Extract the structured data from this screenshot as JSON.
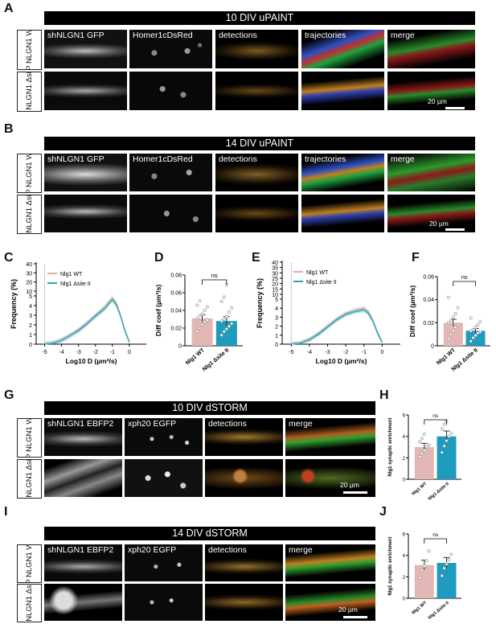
{
  "panels": {
    "A": {
      "letter": "A",
      "header": "10 DIV uPAINT",
      "rows": [
        "AP NLGN1 WT",
        "AP NLGN1 ΔsiteII"
      ],
      "cols": [
        "shNLGN1 GFP",
        "Homer1cDsRed",
        "detections",
        "trajectories",
        "merge"
      ],
      "scalebar": "20 µm"
    },
    "B": {
      "letter": "B",
      "header": "14 DIV uPAINT",
      "rows": [
        "AP NLGN1 WT",
        "AP NLGN1 ΔsiteII"
      ],
      "cols": [
        "shNLGN1 GFP",
        "Homer1cDsRed",
        "detections",
        "trajectories",
        "merge"
      ],
      "scalebar": "20 µm"
    },
    "G": {
      "letter": "G",
      "header": "10 DIV dSTORM",
      "rows": [
        "AP NLGN1 WT",
        "AP NLGN1 ΔsiteII"
      ],
      "cols": [
        "shNLGN1 EBFP2",
        "xph20 EGFP",
        "detections",
        "merge"
      ],
      "scalebar": "20 µm"
    },
    "I": {
      "letter": "I",
      "header": "14 DIV dSTORM",
      "rows": [
        "AP NLGN1 WT",
        "AP NLGN1 ΔsiteII"
      ],
      "cols": [
        "shNLGN1 EBFP2",
        "xph20 EGFP",
        "detections",
        "merge"
      ],
      "scalebar": "20 µm"
    }
  },
  "letters": {
    "C": "C",
    "D": "D",
    "E": "E",
    "F": "F",
    "H": "H",
    "J": "J"
  },
  "colors": {
    "wt": "#e3b7b3",
    "mut": "#1f9bbd",
    "wt_line": "#e9aaa8",
    "mut_line": "#2aa7b8"
  },
  "chart_data": [
    {
      "id": "C",
      "type": "line",
      "xlabel": "Log10 D (µm²/s)",
      "ylabel": "Frequency (%)",
      "xlim": [
        -5.5,
        1
      ],
      "xticks": [
        -5,
        -4,
        -3,
        -2,
        -1,
        0
      ],
      "yticks_lower": [
        0,
        1,
        2,
        3,
        4,
        5
      ],
      "yticks_upper": [
        10,
        20,
        30,
        40
      ],
      "series": [
        {
          "name": "Nlg1 WT",
          "x": [
            -5,
            -4.5,
            -4,
            -3.5,
            -3,
            -2.5,
            -2,
            -1.5,
            -1.25,
            -1,
            -0.75,
            -0.5,
            -0.25,
            0
          ],
          "y": [
            0,
            0.1,
            0.4,
            0.9,
            1.5,
            2.2,
            3.0,
            3.8,
            4.3,
            4.8,
            4.2,
            2.9,
            1.4,
            0.2
          ]
        },
        {
          "name": "Nlg1 Δsite II",
          "x": [
            -5,
            -4.5,
            -4,
            -3.5,
            -3,
            -2.5,
            -2,
            -1.5,
            -1.25,
            -1,
            -0.75,
            -0.5,
            -0.25,
            0
          ],
          "y": [
            0,
            0.1,
            0.4,
            0.9,
            1.4,
            2.1,
            2.9,
            3.6,
            4.1,
            4.6,
            4.0,
            2.8,
            1.3,
            0.2
          ]
        }
      ],
      "spike": {
        "x": -5,
        "y": 40
      }
    },
    {
      "id": "D",
      "type": "bar",
      "ylabel": "Diff coef (µm²/s)",
      "ylim": [
        0,
        0.08
      ],
      "yticks": [
        0,
        0.02,
        0.04,
        0.06,
        0.08
      ],
      "categories": [
        "Nlg1 WT",
        "Nlg1 Δsite II"
      ],
      "values": [
        0.031,
        0.028
      ],
      "errors": [
        0.004,
        0.005
      ],
      "points": [
        [
          0.016,
          0.02,
          0.024,
          0.027,
          0.029,
          0.031,
          0.034,
          0.036,
          0.04,
          0.044,
          0.046,
          0.051
        ],
        [
          0.012,
          0.016,
          0.019,
          0.022,
          0.025,
          0.028,
          0.03,
          0.033,
          0.038,
          0.043,
          0.05,
          0.055,
          0.069
        ]
      ],
      "significance": "ns"
    },
    {
      "id": "E",
      "type": "line",
      "xlabel": "Log10 D (µm²/s)",
      "ylabel": "Frequency (%)",
      "xlim": [
        -5.5,
        1
      ],
      "xticks": [
        -5,
        -4,
        -3,
        -2,
        -1,
        0
      ],
      "yticks_lower": [
        0,
        1,
        2,
        3,
        4,
        5
      ],
      "yticks_upper": [
        10,
        15,
        20,
        25,
        30,
        35,
        40
      ],
      "series": [
        {
          "name": "Nlg1 WT",
          "x": [
            -5,
            -4.5,
            -4,
            -3.5,
            -3,
            -2.5,
            -2,
            -1.5,
            -1.25,
            -1,
            -0.75,
            -0.5,
            -0.25,
            0
          ],
          "y": [
            0,
            0.1,
            0.5,
            1.2,
            2.0,
            2.8,
            3.4,
            3.8,
            3.9,
            4.0,
            3.6,
            2.6,
            1.3,
            0.2
          ]
        },
        {
          "name": "Nlg1 Δsite II",
          "x": [
            -5,
            -4.5,
            -4,
            -3.5,
            -3,
            -2.5,
            -2,
            -1.5,
            -1.25,
            -1,
            -0.75,
            -0.5,
            -0.25,
            0
          ],
          "y": [
            0,
            0.1,
            0.5,
            1.1,
            1.9,
            2.7,
            3.3,
            3.6,
            3.7,
            3.8,
            3.4,
            2.5,
            1.2,
            0.2
          ]
        }
      ],
      "spike": {
        "x": -5,
        "y": 40
      }
    },
    {
      "id": "F",
      "type": "bar",
      "ylabel": "Diff coef (µm²/s)",
      "ylim": [
        0,
        0.06
      ],
      "yticks": [
        0,
        0.02,
        0.04,
        0.06
      ],
      "categories": [
        "Nlg1 WT",
        "Nlg1 Δsite II"
      ],
      "values": [
        0.02,
        0.013
      ],
      "errors": [
        0.003,
        0.002
      ],
      "points": [
        [
          0.006,
          0.01,
          0.013,
          0.016,
          0.018,
          0.02,
          0.022,
          0.025,
          0.028,
          0.033,
          0.042
        ],
        [
          0.004,
          0.007,
          0.009,
          0.011,
          0.012,
          0.013,
          0.014,
          0.016,
          0.018,
          0.021,
          0.024
        ]
      ],
      "significance": "ns"
    },
    {
      "id": "H",
      "type": "bar",
      "ylabel": "Nlg1 synaptic enrichment",
      "ylim": [
        0,
        6
      ],
      "yticks": [
        0,
        2,
        4,
        6
      ],
      "categories": [
        "Nlg1 WT",
        "Nlg1 Δsite II"
      ],
      "values": [
        3.0,
        4.0
      ],
      "errors": [
        0.35,
        0.5
      ],
      "points": [
        [
          2.1,
          2.4,
          2.7,
          3.0,
          3.2,
          3.5,
          3.8,
          4.2
        ],
        [
          2.5,
          3.1,
          3.6,
          4.0,
          4.3,
          4.7,
          5.1,
          5.4
        ]
      ],
      "significance": "ns"
    },
    {
      "id": "J",
      "type": "bar",
      "ylabel": "Nlg1 synaptic enrichment",
      "ylim": [
        0,
        6
      ],
      "yticks": [
        0,
        2,
        4,
        6
      ],
      "categories": [
        "Nlg1 WT",
        "Nlg1 Δsite II"
      ],
      "values": [
        3.1,
        3.3
      ],
      "errors": [
        0.45,
        0.5
      ],
      "points": [
        [
          1.9,
          2.6,
          3.0,
          3.5,
          4.4
        ],
        [
          2.1,
          2.8,
          3.2,
          3.6,
          4.1
        ]
      ],
      "significance": "ns"
    }
  ]
}
